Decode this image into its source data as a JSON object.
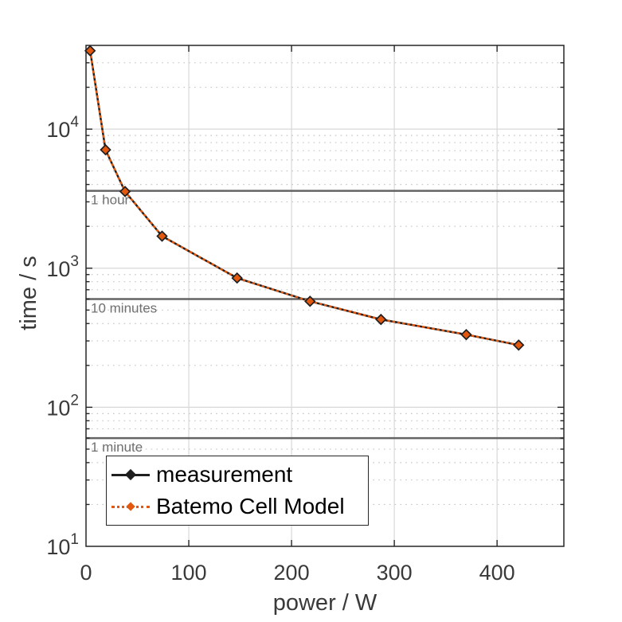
{
  "chart_data": {
    "type": "line",
    "title": "",
    "xlabel": "power / W",
    "ylabel": "time / s",
    "x_axis": {
      "min": 0,
      "max": 465,
      "ticks": [
        0,
        100,
        200,
        300,
        400
      ],
      "scale": "linear"
    },
    "y_axis": {
      "min": 10,
      "max": 40000,
      "ticks": [
        10,
        100,
        1000,
        10000
      ],
      "scale": "log10"
    },
    "grid": {
      "x_major": true,
      "y_major": true,
      "y_minor_dotted": true,
      "x_minor": false
    },
    "legend_position": "southwest",
    "series": [
      {
        "name": "measurement",
        "color": "#1f1f1f",
        "line_style": "solid",
        "marker": "diamond",
        "x": [
          4,
          19,
          38,
          74,
          147,
          218,
          287,
          370,
          421
        ],
        "y": [
          36600,
          7100,
          3560,
          1700,
          850,
          578,
          428,
          333,
          280
        ]
      },
      {
        "name": "Batemo Cell Model",
        "color": "#e2580f",
        "line_style": "dotted",
        "marker": "diamond",
        "x": [
          4,
          19,
          38,
          74,
          147,
          218,
          287,
          370,
          421
        ],
        "y": [
          36600,
          7100,
          3560,
          1700,
          850,
          578,
          428,
          333,
          280
        ]
      }
    ],
    "reference_lines": [
      {
        "label": "1 hour",
        "value": 3600
      },
      {
        "label": "10 minutes",
        "value": 600
      },
      {
        "label": "1 minute",
        "value": 60
      }
    ]
  },
  "legend": {
    "items": [
      {
        "label": "measurement"
      },
      {
        "label": "Batemo Cell Model"
      }
    ]
  },
  "colors": {
    "background": "#ffffff",
    "measurement": "#1f1f1f",
    "model_orange": "#e2580f",
    "reference_line": "#646464",
    "reference_label": "#6f6f6f",
    "grid_major": "#d8d8d8",
    "grid_minor": "#c6c6c6",
    "axis_box": "#262626",
    "tick_label": "#3a3a3a"
  }
}
